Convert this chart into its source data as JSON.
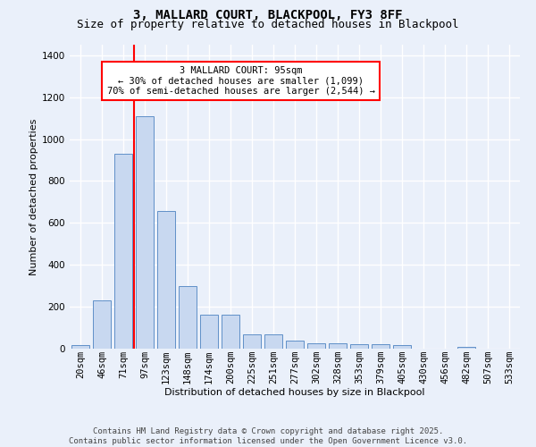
{
  "title1": "3, MALLARD COURT, BLACKPOOL, FY3 8FF",
  "title2": "Size of property relative to detached houses in Blackpool",
  "xlabel": "Distribution of detached houses by size in Blackpool",
  "ylabel": "Number of detached properties",
  "categories": [
    "20sqm",
    "46sqm",
    "71sqm",
    "97sqm",
    "123sqm",
    "148sqm",
    "174sqm",
    "200sqm",
    "225sqm",
    "251sqm",
    "277sqm",
    "302sqm",
    "328sqm",
    "353sqm",
    "379sqm",
    "405sqm",
    "430sqm",
    "456sqm",
    "482sqm",
    "507sqm",
    "533sqm"
  ],
  "values": [
    15,
    230,
    930,
    1110,
    655,
    300,
    160,
    160,
    70,
    70,
    40,
    25,
    25,
    22,
    20,
    15,
    0,
    0,
    10,
    0,
    0
  ],
  "bar_color": "#c8d8f0",
  "bar_edge_color": "#6090c8",
  "vline_color": "red",
  "vline_pos": 2.5,
  "annotation_text": "3 MALLARD COURT: 95sqm\n← 30% of detached houses are smaller (1,099)\n70% of semi-detached houses are larger (2,544) →",
  "annotation_box_facecolor": "white",
  "annotation_box_edgecolor": "red",
  "ylim": [
    0,
    1450
  ],
  "yticks": [
    0,
    200,
    400,
    600,
    800,
    1000,
    1200,
    1400
  ],
  "footer1": "Contains HM Land Registry data © Crown copyright and database right 2025.",
  "footer2": "Contains public sector information licensed under the Open Government Licence v3.0.",
  "bg_color": "#eaf0fa",
  "grid_color": "white",
  "title_fontsize": 10,
  "subtitle_fontsize": 9,
  "axis_label_fontsize": 8,
  "tick_fontsize": 7.5,
  "annot_fontsize": 7.5,
  "footer_fontsize": 6.5
}
